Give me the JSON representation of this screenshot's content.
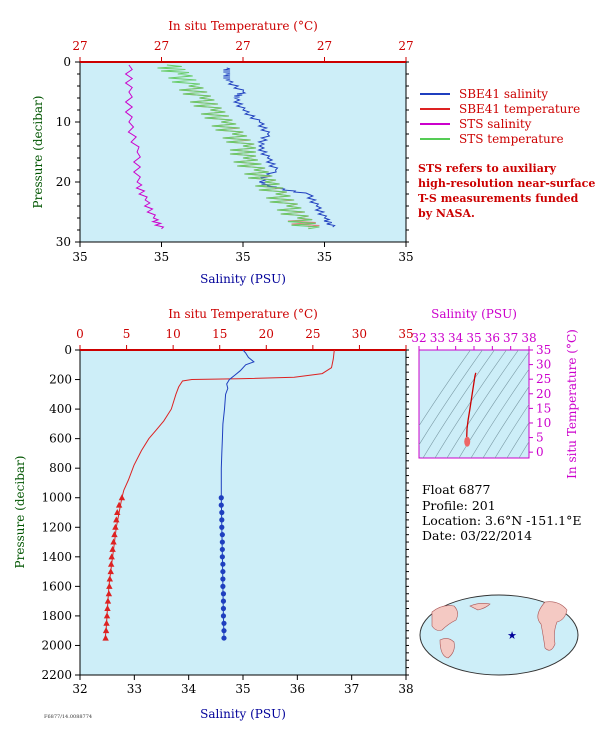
{
  "chart_data": [
    {
      "type": "line",
      "panel": "near-surface",
      "title": "",
      "top_axis_label": "In situ Temperature (°C)",
      "top_ticks": [
        "27",
        "27",
        "27",
        "27",
        "27"
      ],
      "xlabel": "Salinity (PSU)",
      "bottom_ticks": [
        "35",
        "35",
        "35",
        "35",
        "35"
      ],
      "ylabel": "Pressure (decibar)",
      "y_ticks": [
        "0",
        "10",
        "20",
        "30"
      ],
      "ylim": [
        0,
        30
      ],
      "series": [
        {
          "name": "SBE41 salinity",
          "color": "#1f3fbf",
          "points": [
            [
              35.08,
              1
            ],
            [
              35.08,
              2
            ],
            [
              35.08,
              3
            ],
            [
              35.1,
              5
            ],
            [
              35.09,
              6
            ],
            [
              35.1,
              8
            ],
            [
              35.12,
              10
            ],
            [
              35.13,
              12
            ],
            [
              35.12,
              14
            ],
            [
              35.13,
              16
            ],
            [
              35.14,
              18
            ],
            [
              35.12,
              20
            ],
            [
              35.14,
              21
            ],
            [
              35.18,
              22
            ],
            [
              35.19,
              24
            ],
            [
              35.2,
              26
            ],
            [
              35.21,
              27.5
            ]
          ]
        },
        {
          "name": "SBE41 temperature",
          "color": "#e08080",
          "points": [
            [
              27.3,
              4
            ],
            [
              27.31,
              6
            ],
            [
              27.32,
              8
            ],
            [
              27.33,
              10
            ],
            [
              27.34,
              12
            ],
            [
              27.35,
              14
            ],
            [
              27.35,
              16
            ],
            [
              27.36,
              18
            ],
            [
              27.37,
              20
            ],
            [
              27.38,
              22
            ],
            [
              27.39,
              24
            ],
            [
              27.4,
              26
            ],
            [
              27.41,
              27.5
            ]
          ]
        },
        {
          "name": "STS salinity",
          "color": "#cc00cc",
          "points": [
            [
              34.96,
              0.5
            ],
            [
              34.96,
              5
            ],
            [
              34.96,
              10
            ],
            [
              34.97,
              15
            ],
            [
              34.97,
              20
            ],
            [
              34.98,
              23
            ],
            [
              34.99,
              26
            ],
            [
              35.0,
              27.8
            ]
          ]
        },
        {
          "name": "STS temperature",
          "color": "#66cc66",
          "points": [
            [
              27.28,
              0.5
            ],
            [
              27.29,
              2
            ],
            [
              27.3,
              4
            ],
            [
              27.31,
              6
            ],
            [
              27.32,
              8
            ],
            [
              27.33,
              10
            ],
            [
              27.34,
              12
            ],
            [
              27.35,
              14
            ],
            [
              27.35,
              16
            ],
            [
              27.36,
              18
            ],
            [
              27.37,
              20
            ],
            [
              27.38,
              22
            ],
            [
              27.39,
              24
            ],
            [
              27.4,
              26
            ],
            [
              27.41,
              27.8
            ]
          ]
        }
      ],
      "note": [
        "STS refers to auxiliary",
        "high-resolution near-surface",
        "T-S measurements funded",
        "by NASA."
      ]
    },
    {
      "type": "line",
      "panel": "full-profile",
      "top_axis_label": "In situ Temperature (°C)",
      "top_ticks": [
        "0",
        "5",
        "10",
        "15",
        "20",
        "25",
        "30",
        "35"
      ],
      "xlabel": "Salinity (PSU)",
      "bottom_ticks": [
        "32",
        "33",
        "34",
        "35",
        "36",
        "37",
        "38"
      ],
      "ylabel": "Pressure (decibar)",
      "y_ticks": [
        "0",
        "200",
        "400",
        "600",
        "800",
        "1000",
        "1200",
        "1400",
        "1600",
        "1800",
        "2000",
        "2200"
      ],
      "xlim_salinity": [
        32,
        38
      ],
      "xlim_temperature": [
        0,
        35
      ],
      "ylim": [
        0,
        2200
      ],
      "series": [
        {
          "name": "temperature",
          "color": "#dd2222",
          "points": [
            [
              27.3,
              0
            ],
            [
              27.2,
              60
            ],
            [
              27.0,
              120
            ],
            [
              26.0,
              160
            ],
            [
              23.0,
              185
            ],
            [
              17.0,
              195
            ],
            [
              12.0,
              200
            ],
            [
              11.0,
              210
            ],
            [
              10.6,
              250
            ],
            [
              10.3,
              300
            ],
            [
              9.8,
              400
            ],
            [
              9.0,
              480
            ],
            [
              8.2,
              540
            ],
            [
              7.4,
              600
            ],
            [
              6.6,
              680
            ],
            [
              5.8,
              780
            ],
            [
              5.2,
              880
            ],
            [
              4.7,
              950
            ],
            [
              4.5,
              1000
            ],
            [
              4.2,
              1100
            ],
            [
              3.9,
              1200
            ],
            [
              3.7,
              1300
            ],
            [
              3.5,
              1400
            ],
            [
              3.3,
              1500
            ],
            [
              3.1,
              1600
            ],
            [
              3.0,
              1700
            ],
            [
              2.9,
              1800
            ],
            [
              2.8,
              1900
            ],
            [
              2.7,
              1950
            ]
          ],
          "markers": [
            [
              4.5,
              1000
            ],
            [
              4.2,
              1050
            ],
            [
              4.0,
              1100
            ],
            [
              3.9,
              1150
            ],
            [
              3.8,
              1200
            ],
            [
              3.7,
              1250
            ],
            [
              3.6,
              1300
            ],
            [
              3.5,
              1350
            ],
            [
              3.4,
              1400
            ],
            [
              3.35,
              1450
            ],
            [
              3.3,
              1500
            ],
            [
              3.2,
              1550
            ],
            [
              3.15,
              1600
            ],
            [
              3.1,
              1650
            ],
            [
              3.0,
              1700
            ],
            [
              2.95,
              1750
            ],
            [
              2.9,
              1800
            ],
            [
              2.85,
              1850
            ],
            [
              2.8,
              1900
            ],
            [
              2.75,
              1950
            ]
          ]
        },
        {
          "name": "salinity",
          "color": "#1f3fbf",
          "points": [
            [
              35.0,
              0
            ],
            [
              35.05,
              20
            ],
            [
              35.1,
              50
            ],
            [
              35.2,
              80
            ],
            [
              35.05,
              100
            ],
            [
              34.95,
              140
            ],
            [
              34.85,
              170
            ],
            [
              34.75,
              200
            ],
            [
              34.7,
              230
            ],
            [
              34.72,
              260
            ],
            [
              34.68,
              300
            ],
            [
              34.66,
              400
            ],
            [
              34.63,
              500
            ],
            [
              34.62,
              600
            ],
            [
              34.61,
              700
            ],
            [
              34.6,
              800
            ],
            [
              34.6,
              900
            ],
            [
              34.6,
              1000
            ],
            [
              34.61,
              1200
            ],
            [
              34.62,
              1400
            ],
            [
              34.63,
              1600
            ],
            [
              34.64,
              1800
            ],
            [
              34.65,
              1950
            ]
          ],
          "markers": [
            [
              34.6,
              1000
            ],
            [
              34.6,
              1050
            ],
            [
              34.61,
              1100
            ],
            [
              34.61,
              1150
            ],
            [
              34.61,
              1200
            ],
            [
              34.62,
              1250
            ],
            [
              34.62,
              1300
            ],
            [
              34.62,
              1350
            ],
            [
              34.62,
              1400
            ],
            [
              34.63,
              1450
            ],
            [
              34.63,
              1500
            ],
            [
              34.63,
              1550
            ],
            [
              34.63,
              1600
            ],
            [
              34.64,
              1650
            ],
            [
              34.64,
              1700
            ],
            [
              34.64,
              1750
            ],
            [
              34.64,
              1800
            ],
            [
              34.65,
              1850
            ],
            [
              34.65,
              1900
            ],
            [
              34.65,
              1950
            ]
          ]
        }
      ]
    },
    {
      "type": "line",
      "panel": "ts-diagram",
      "top_axis_label": "Salinity (PSU)",
      "top_ticks": [
        "32",
        "33",
        "34",
        "35",
        "36",
        "37",
        "38"
      ],
      "right_axis_label": "In situ Temperature (°C)",
      "right_ticks": [
        "0",
        "5",
        "10",
        "15",
        "20",
        "25",
        "30",
        "35"
      ],
      "xlim": [
        32,
        38
      ],
      "ylim": [
        -2,
        35
      ],
      "series": [
        {
          "name": "T-S",
          "color": "#cc0000",
          "points": [
            [
              35.1,
              27.2
            ],
            [
              35.05,
              26
            ],
            [
              34.9,
              20
            ],
            [
              34.78,
              15
            ],
            [
              34.68,
              11
            ],
            [
              34.62,
              8
            ],
            [
              34.6,
              5
            ],
            [
              34.62,
              4
            ],
            [
              34.64,
              3.5
            ],
            [
              34.65,
              2.8
            ]
          ]
        }
      ]
    }
  ],
  "legend": [
    {
      "label": "SBE41 salinity",
      "color": "#1f3fbf"
    },
    {
      "label": "SBE41 temperature",
      "color": "#dd2222"
    },
    {
      "label": "STS salinity",
      "color": "#cc00cc"
    },
    {
      "label": "STS temperature",
      "color": "#55cc55"
    }
  ],
  "float_info": {
    "float": "Float  6877",
    "profile": "Profile:  201",
    "location": "Location:  3.6°N  -151.1°E",
    "date": "Date:  03/22/2014"
  },
  "footer_code": "F6877/14.0088774"
}
